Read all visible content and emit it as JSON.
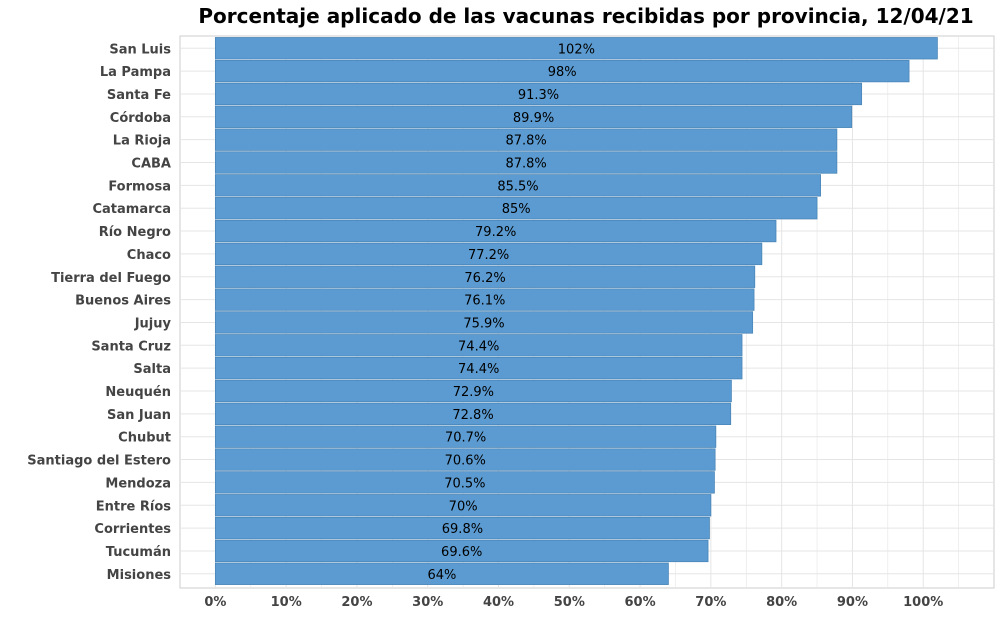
{
  "chart_data": {
    "type": "bar",
    "orientation": "horizontal",
    "title": "Porcentaje aplicado de las vacunas recibidas por provincia, 12/04/21",
    "xlabel": "",
    "ylabel": "",
    "xlim": [
      -5,
      110
    ],
    "grid": true,
    "categories": [
      "San Luis",
      "La Pampa",
      "Santa Fe",
      "Córdoba",
      "La Rioja",
      "CABA",
      "Formosa",
      "Catamarca",
      "Río Negro",
      "Chaco",
      "Tierra del Fuego",
      "Buenos Aires",
      "Jujuy",
      "Santa Cruz",
      "Salta",
      "Neuquén",
      "San Juan",
      "Chubut",
      "Santiago del Estero",
      "Mendoza",
      "Entre Ríos",
      "Corrientes",
      "Tucumán",
      "Misiones"
    ],
    "values": [
      102,
      98,
      91.3,
      89.9,
      87.8,
      87.8,
      85.5,
      85,
      79.2,
      77.2,
      76.2,
      76.1,
      75.9,
      74.4,
      74.4,
      72.9,
      72.8,
      70.7,
      70.6,
      70.5,
      70,
      69.8,
      69.6,
      64
    ],
    "data_labels": [
      "102%",
      "98%",
      "91.3%",
      "89.9%",
      "87.8%",
      "87.8%",
      "85.5%",
      "85%",
      "79.2%",
      "77.2%",
      "76.2%",
      "76.1%",
      "75.9%",
      "74.4%",
      "74.4%",
      "72.9%",
      "72.8%",
      "70.7%",
      "70.6%",
      "70.5%",
      "70%",
      "69.8%",
      "69.6%",
      "64%"
    ],
    "x_ticks": [
      0,
      10,
      20,
      30,
      40,
      50,
      60,
      70,
      80,
      90,
      100
    ],
    "x_tick_labels": [
      "0%",
      "10%",
      "20%",
      "30%",
      "40%",
      "50%",
      "60%",
      "70%",
      "80%",
      "90%",
      "100%"
    ],
    "bar_color": "#5b9bd1",
    "bar_edge_color": "#4a86b8",
    "grid_color": "#e5e5e5",
    "tick_label_color": "#444444"
  }
}
